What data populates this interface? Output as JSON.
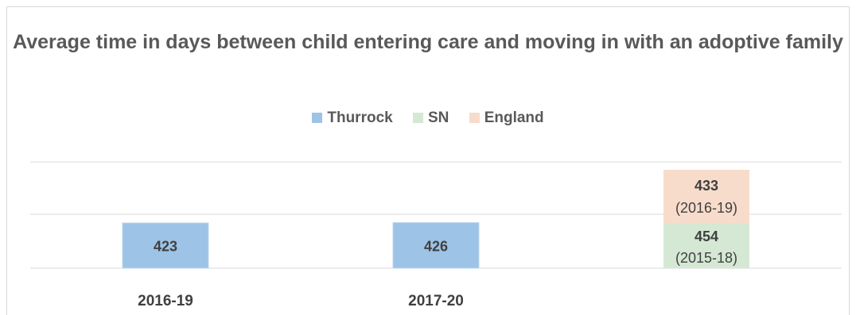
{
  "chart_data": {
    "type": "bar",
    "title": "Average time in days between child entering care and moving in with an adoptive family",
    "categories": [
      "2016-19",
      "2017-20",
      ""
    ],
    "series": [
      {
        "name": "Thurrock",
        "color": "#9dc3e6",
        "values": [
          423,
          426,
          null
        ],
        "labels": [
          "423",
          "426",
          ""
        ]
      },
      {
        "name": "SN",
        "color": "#d5e8d4",
        "values": [
          null,
          null,
          454
        ],
        "labels": [
          "",
          "",
          "454"
        ],
        "sublabel": "(2015-18)"
      },
      {
        "name": "England",
        "color": "#f8dccb",
        "values": [
          null,
          null,
          433
        ],
        "labels": [
          "",
          "",
          "433"
        ],
        "sublabel": "(2016-19)"
      }
    ],
    "legend_position": "top",
    "grid": true,
    "stacked_third_column": true
  }
}
